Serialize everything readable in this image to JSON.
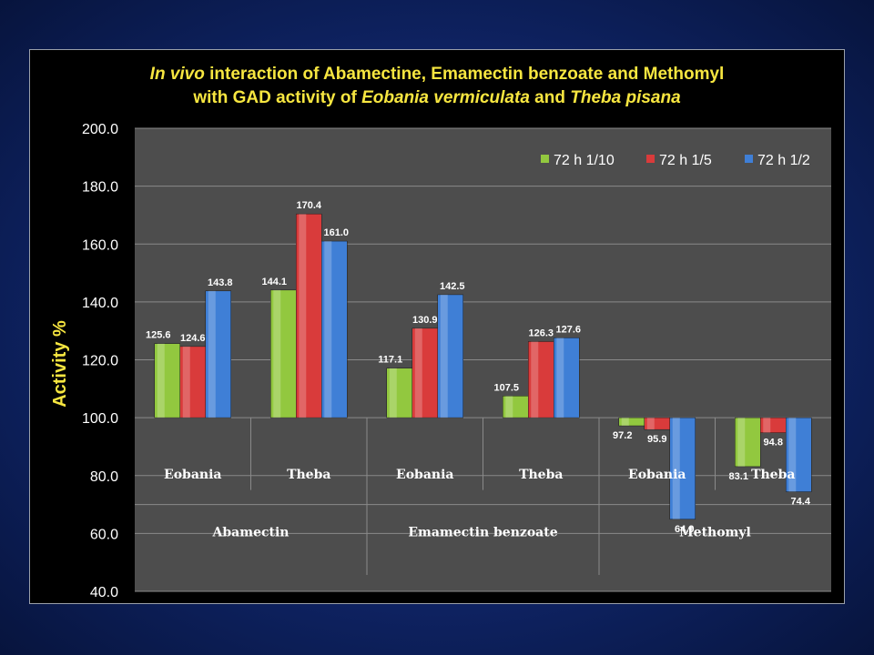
{
  "title": {
    "line1_italic": "In vivo",
    "line1_rest": " interaction of Abamectine, Emamectin benzoate and Methomyl",
    "line2_start": "with GAD activity of ",
    "line2_species1": "Eobania vermiculata",
    "line2_mid": " and ",
    "line2_species2": "Theba pisana"
  },
  "colors": {
    "background": "#0f2466",
    "plot_area": "#4d4d4d",
    "title": "#f7e640",
    "green": "#92c83f",
    "red": "#d93b3b",
    "blue": "#3f7fd6"
  },
  "chart_data": {
    "type": "bar",
    "ylabel": "Activity  %",
    "ylim": [
      40,
      200
    ],
    "yticks": [
      "200.0",
      "180.0",
      "160.0",
      "140.0",
      "120.0",
      "100.0",
      "80.0",
      "60.0",
      "40.0"
    ],
    "baseline": 100,
    "grid": true,
    "legend_position": "top-right",
    "groups": [
      {
        "label": "Abamectin",
        "categories": [
          "Eobania",
          "Theba"
        ]
      },
      {
        "label": "Emamectin benzoate",
        "categories": [
          "Eobania",
          "Theba"
        ]
      },
      {
        "label": "Methomyl",
        "categories": [
          "Eobania",
          "Theba"
        ]
      }
    ],
    "categories": [
      "Eobania",
      "Theba",
      "Eobania",
      "Theba",
      "Eobania",
      "Theba"
    ],
    "series": [
      {
        "name": "72 h  1/10",
        "color": "#92c83f",
        "values": [
          125.6,
          144.1,
          117.1,
          107.5,
          97.2,
          83.1
        ],
        "labels": [
          "125.6",
          "144.1",
          "117.1",
          "107.5",
          "97.2",
          "83.1"
        ]
      },
      {
        "name": "72 h  1/5",
        "color": "#d93b3b",
        "values": [
          124.6,
          170.4,
          130.9,
          126.3,
          95.9,
          94.8
        ],
        "labels": [
          "124.6",
          "170.4",
          "130.9",
          "126.3",
          "95.9",
          "94.8"
        ]
      },
      {
        "name": "72 h  1/2",
        "color": "#3f7fd6",
        "values": [
          143.8,
          161.0,
          142.5,
          127.6,
          64.9,
          74.4
        ],
        "labels": [
          "143.8",
          "161.0",
          "142.5",
          "127.6",
          "64.9",
          "74.4"
        ]
      }
    ]
  }
}
